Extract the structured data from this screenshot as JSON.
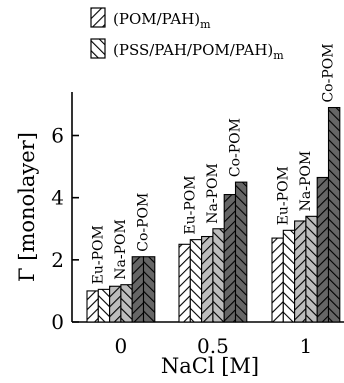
{
  "chart_data": {
    "type": "bar",
    "categories": [
      "0",
      "0.5",
      "1"
    ],
    "xlabel": "NaCl [M]",
    "ylabel": "Γ [monolayer]",
    "ylim": [
      0,
      7.4
    ],
    "yticks": [
      "0",
      "2",
      "4",
      "6"
    ],
    "legend_position": "top",
    "groups": [
      "Eu-POM",
      "Na-POM",
      "Co-POM"
    ],
    "series": [
      {
        "name": "(POM/PAH)",
        "subscript": "m",
        "pattern": "diagonal-forward",
        "values": {
          "Eu-POM": [
            1.0,
            2.5,
            2.7
          ],
          "Na-POM": [
            1.15,
            2.75,
            3.25
          ],
          "Co-POM": [
            2.1,
            4.1,
            4.65
          ]
        }
      },
      {
        "name": "(PSS/PAH/POM/PAH)",
        "subscript": "m",
        "pattern": "diagonal-back",
        "values": {
          "Eu-POM": [
            1.05,
            2.65,
            2.95
          ],
          "Na-POM": [
            1.2,
            3.0,
            3.4
          ],
          "Co-POM": [
            2.1,
            4.5,
            6.9
          ]
        }
      }
    ],
    "group_label_categories": [
      "0",
      "0.5",
      "1"
    ],
    "grid": false
  },
  "colors": {
    "eu": "#ffffff",
    "na": "#bdbdbd",
    "co": "#666666",
    "stroke": "#000000"
  }
}
